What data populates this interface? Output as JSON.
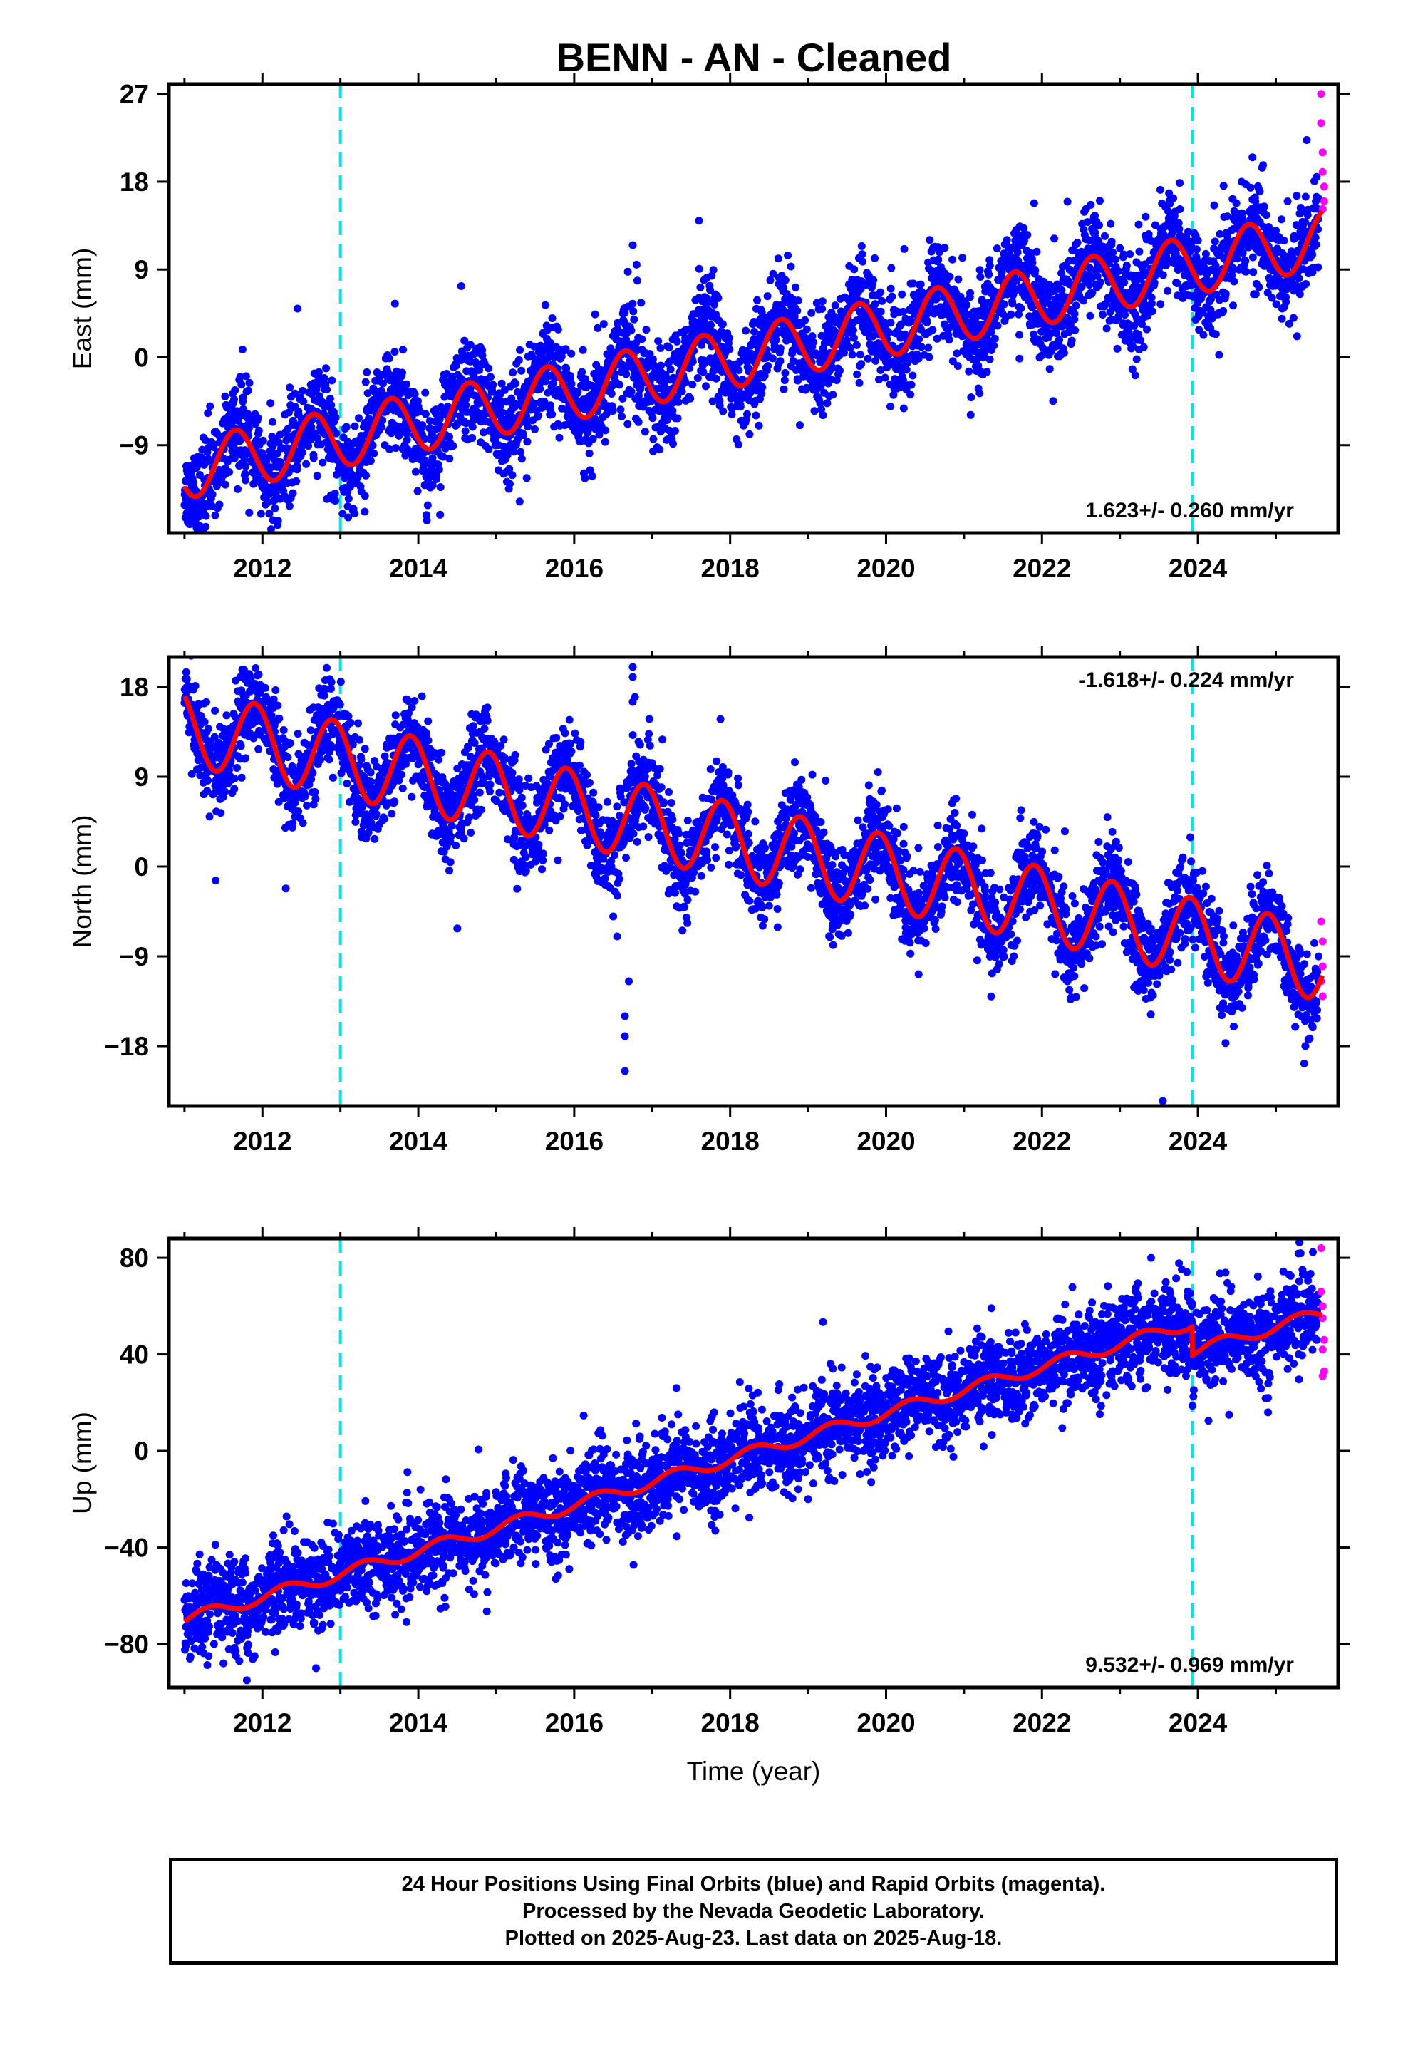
{
  "title": "BENN  - AN - Cleaned",
  "colors": {
    "final": "#0000ff",
    "rapid": "#ff00ff",
    "model": "#ff0000",
    "event_line": "#00e5e5"
  },
  "chart_data": [
    {
      "type": "scatter",
      "component": "East",
      "ylabel": "East (mm)",
      "xlabel": "",
      "xlim": [
        2010.8,
        2025.8
      ],
      "ylim": [
        -18,
        28
      ],
      "yticks": [
        -9,
        0,
        9,
        18,
        27
      ],
      "xticks": [
        2012,
        2014,
        2016,
        2018,
        2020,
        2022,
        2024
      ],
      "rate_label": "1.623+/- 0.260 mm/yr",
      "rate_position": "bottom-right",
      "event_lines": [
        2013.0,
        2023.93
      ],
      "model": {
        "start": 2011.0,
        "end": 2025.6,
        "start_value": -11.5,
        "rate": 1.62,
        "annual_amplitude": 3.0,
        "annual_phase_peak": 0.65,
        "offsets": [
          {
            "epoch": 2023.93,
            "value": 0.0
          }
        ]
      },
      "final_orbits": {
        "start": 2011.0,
        "end": 2025.55,
        "scatter_mm": 1.8,
        "outliers": [
          {
            "x": 2016.75,
            "y": 11.5
          },
          {
            "x": 2016.8,
            "y": 9.5
          },
          {
            "x": 2017.6,
            "y": 14.0
          },
          {
            "x": 2012.45,
            "y": 5.0
          },
          {
            "x": 2013.7,
            "y": 5.5
          },
          {
            "x": 2014.55,
            "y": 7.3
          },
          {
            "x": 2021.9,
            "y": 15.8
          },
          {
            "x": 2024.7,
            "y": 20.5
          },
          {
            "x": 2011.15,
            "y": -16.5
          }
        ]
      },
      "rapid_orbits": [
        {
          "x": 2025.58,
          "y": 27.0
        },
        {
          "x": 2025.58,
          "y": 24.0
        },
        {
          "x": 2025.6,
          "y": 21.0
        },
        {
          "x": 2025.6,
          "y": 19.0
        },
        {
          "x": 2025.62,
          "y": 17.5
        },
        {
          "x": 2025.62,
          "y": 16.0
        },
        {
          "x": 2025.6,
          "y": 15.2
        }
      ]
    },
    {
      "type": "scatter",
      "component": "North",
      "ylabel": "North (mm)",
      "xlabel": "",
      "xlim": [
        2010.8,
        2025.8
      ],
      "ylim": [
        -24,
        21
      ],
      "yticks": [
        -18,
        -9,
        0,
        9,
        18
      ],
      "xticks": [
        2012,
        2014,
        2016,
        2018,
        2020,
        2022,
        2024
      ],
      "rate_label": "-1.618+/- 0.224 mm/yr",
      "rate_position": "top-right",
      "event_lines": [
        2013.0,
        2023.93
      ],
      "model": {
        "start": 2011.0,
        "end": 2025.6,
        "start_value": 14.0,
        "rate": -1.62,
        "annual_amplitude": 3.8,
        "annual_phase_peak": 0.9,
        "offsets": [
          {
            "epoch": 2023.93,
            "value": 0.0
          }
        ]
      },
      "final_orbits": {
        "start": 2011.0,
        "end": 2025.55,
        "scatter_mm": 1.6,
        "outliers": [
          {
            "x": 2016.75,
            "y": 20.0
          },
          {
            "x": 2016.75,
            "y": 19.0
          },
          {
            "x": 2016.78,
            "y": 17.0
          },
          {
            "x": 2016.75,
            "y": 16.5
          },
          {
            "x": 2016.65,
            "y": -20.5
          },
          {
            "x": 2016.65,
            "y": -17.0
          },
          {
            "x": 2016.65,
            "y": -15.0
          },
          {
            "x": 2016.7,
            "y": -11.5
          },
          {
            "x": 2016.5,
            "y": -5.0
          },
          {
            "x": 2016.55,
            "y": -7.0
          },
          {
            "x": 2011.4,
            "y": -1.4
          },
          {
            "x": 2012.3,
            "y": -2.2
          },
          {
            "x": 2014.5,
            "y": -6.2
          },
          {
            "x": 2023.55,
            "y": -23.5
          },
          {
            "x": 2011.85,
            "y": 18.5
          }
        ]
      },
      "rapid_orbits": [
        {
          "x": 2025.58,
          "y": -5.5
        },
        {
          "x": 2025.6,
          "y": -7.5
        },
        {
          "x": 2025.6,
          "y": -10.0
        },
        {
          "x": 2025.58,
          "y": -11.5
        },
        {
          "x": 2025.6,
          "y": -13.0
        }
      ]
    },
    {
      "type": "scatter",
      "component": "Up",
      "ylabel": "Up (mm)",
      "xlabel": "Time (year)",
      "xlim": [
        2010.8,
        2025.8
      ],
      "ylim": [
        -98,
        88
      ],
      "yticks": [
        -80,
        -40,
        0,
        40,
        80
      ],
      "xticks": [
        2012,
        2014,
        2016,
        2018,
        2020,
        2022,
        2024
      ],
      "rate_label": "9.532+/- 0.969 mm/yr",
      "rate_position": "bottom-right",
      "event_lines": [
        2013.0,
        2023.93
      ],
      "model": {
        "start": 2011.0,
        "end": 2025.6,
        "start_value": -70.0,
        "rate": 9.53,
        "annual_amplitude": 2.5,
        "annual_phase_peak": 0.3,
        "offsets": [
          {
            "epoch": 2023.93,
            "value": -12.0
          }
        ]
      },
      "final_orbits": {
        "start": 2011.0,
        "end": 2025.55,
        "scatter_mm": 6.5,
        "outliers": [
          {
            "x": 2011.5,
            "y": -88.0
          },
          {
            "x": 2011.8,
            "y": -95.0
          },
          {
            "x": 2023.4,
            "y": 80.0
          },
          {
            "x": 2024.4,
            "y": 15.0
          },
          {
            "x": 2024.9,
            "y": 16.0
          },
          {
            "x": 2019.0,
            "y": -20.0
          }
        ]
      },
      "rapid_orbits": [
        {
          "x": 2025.58,
          "y": 84.0
        },
        {
          "x": 2025.58,
          "y": 66.0
        },
        {
          "x": 2025.6,
          "y": 60.0
        },
        {
          "x": 2025.6,
          "y": 55.0
        },
        {
          "x": 2025.62,
          "y": 46.0
        },
        {
          "x": 2025.6,
          "y": 42.0
        },
        {
          "x": 2025.62,
          "y": 33.0
        },
        {
          "x": 2025.6,
          "y": 31.0
        }
      ]
    }
  ],
  "caption": {
    "line1": "24 Hour Positions Using Final Orbits (blue) and Rapid Orbits (magenta).",
    "line2": "Processed by the Nevada Geodetic Laboratory.",
    "line3": "Plotted on 2025-Aug-23. Last data on 2025-Aug-18."
  }
}
